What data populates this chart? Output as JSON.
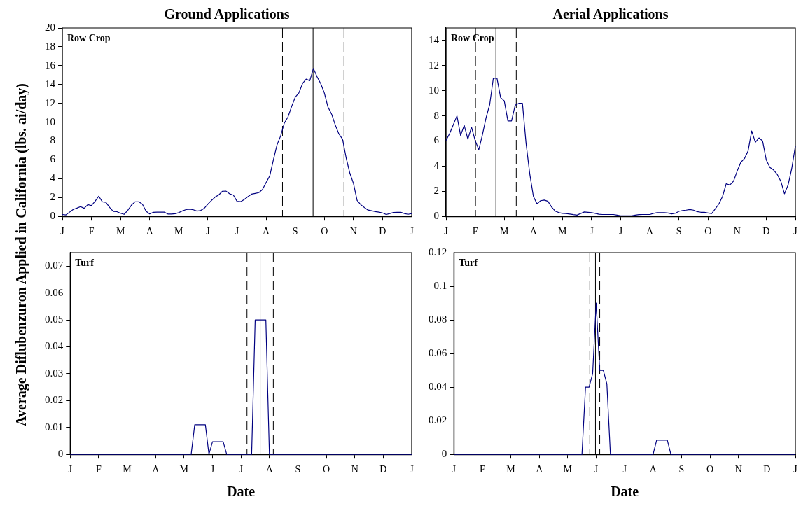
{
  "chart_data": [
    {
      "type": "line",
      "title": "Ground Applications",
      "ylabel": "Average Diflubenzuron Applied in California (lbs. ai/day)",
      "annotations": [
        "Row Crop"
      ],
      "ylim": [
        0,
        20
      ],
      "yticks": [
        0,
        2,
        4,
        6,
        8,
        10,
        12,
        14,
        16,
        18,
        20
      ],
      "categories": [
        "J",
        null,
        null,
        null,
        null,
        null,
        null,
        null,
        "F",
        null,
        null,
        null,
        null,
        null,
        null,
        null,
        "M",
        null,
        null,
        null,
        null,
        null,
        null,
        null,
        "A",
        null,
        null,
        null,
        null,
        null,
        null,
        null,
        "M",
        null,
        null,
        null,
        null,
        null,
        null,
        null,
        "J",
        null,
        null,
        null,
        null,
        null,
        null,
        null,
        "J",
        null,
        null,
        null,
        null,
        null,
        null,
        null,
        "A",
        null,
        null,
        null,
        null,
        null,
        null,
        null,
        "S",
        null,
        null,
        null,
        null,
        null,
        null,
        null,
        "O",
        null,
        null,
        null,
        null,
        null,
        null,
        null,
        "N",
        null,
        null,
        null,
        null,
        null,
        null,
        null,
        "D",
        null,
        null,
        null,
        null,
        null,
        null,
        null,
        "J"
      ],
      "series": [
        {
          "color": "#000080",
          "values": [
            0.2,
            0.16,
            0.45,
            0.74,
            0.88,
            1.04,
            0.86,
            1.25,
            1.15,
            1.6,
            2.15,
            1.55,
            1.48,
            0.95,
            0.53,
            0.5,
            0.33,
            0.22,
            0.65,
            1.2,
            1.55,
            1.55,
            1.3,
            0.55,
            0.26,
            0.44,
            0.45,
            0.45,
            0.45,
            0.25,
            0.24,
            0.28,
            0.4,
            0.58,
            0.72,
            0.77,
            0.7,
            0.56,
            0.62,
            0.86,
            1.3,
            1.7,
            2.05,
            2.28,
            2.67,
            2.68,
            2.39,
            2.26,
            1.6,
            1.56,
            1.8,
            2.1,
            2.36,
            2.44,
            2.52,
            2.86,
            3.6,
            4.3,
            6.0,
            7.6,
            8.55,
            9.9,
            10.55,
            11.65,
            12.65,
            13.1,
            14.1,
            14.57,
            14.4,
            15.7,
            14.82,
            14.1,
            13.1,
            11.6,
            10.85,
            9.7,
            8.75,
            8.2,
            6.2,
            4.6,
            3.5,
            1.7,
            1.25,
            0.95,
            0.67,
            0.6,
            0.51,
            0.45,
            0.37,
            0.2,
            0.3,
            0.41,
            0.43,
            0.44,
            0.3,
            0.22,
            0.3
          ]
        }
      ]
    },
    {
      "type": "line",
      "title": "Aerial Applications",
      "annotations": [
        "Row Crop"
      ],
      "ylim": [
        0,
        15
      ],
      "yticks": [
        0,
        2,
        4,
        6,
        8,
        10,
        12,
        14
      ],
      "categories": [
        "J",
        null,
        null,
        null,
        null,
        null,
        null,
        null,
        "F",
        null,
        null,
        null,
        null,
        null,
        null,
        null,
        "M",
        null,
        null,
        null,
        null,
        null,
        null,
        null,
        "A",
        null,
        null,
        null,
        null,
        null,
        null,
        null,
        "M",
        null,
        null,
        null,
        null,
        null,
        null,
        null,
        "J",
        null,
        null,
        null,
        null,
        null,
        null,
        null,
        "J",
        null,
        null,
        null,
        null,
        null,
        null,
        null,
        "A",
        null,
        null,
        null,
        null,
        null,
        null,
        null,
        "S",
        null,
        null,
        null,
        null,
        null,
        null,
        null,
        "O",
        null,
        null,
        null,
        null,
        null,
        null,
        null,
        "N",
        null,
        null,
        null,
        null,
        null,
        null,
        null,
        "D",
        null,
        null,
        null,
        null,
        null,
        null,
        null,
        "J"
      ],
      "series": [
        {
          "color": "#000080",
          "values": [
            6.05,
            6.6,
            7.3,
            8.0,
            6.45,
            7.25,
            6.15,
            7.1,
            6.05,
            5.3,
            6.5,
            7.85,
            8.9,
            11.0,
            11.0,
            9.45,
            9.2,
            7.6,
            7.6,
            8.85,
            9.0,
            9.0,
            5.8,
            3.4,
            1.6,
            1.0,
            1.25,
            1.3,
            1.2,
            0.75,
            0.42,
            0.3,
            0.24,
            0.22,
            0.19,
            0.14,
            0.1,
            0.23,
            0.35,
            0.33,
            0.3,
            0.24,
            0.17,
            0.15,
            0.15,
            0.15,
            0.15,
            0.1,
            0.05,
            0.05,
            0.05,
            0.05,
            0.1,
            0.14,
            0.15,
            0.15,
            0.15,
            0.24,
            0.3,
            0.3,
            0.3,
            0.27,
            0.2,
            0.25,
            0.4,
            0.47,
            0.5,
            0.55,
            0.5,
            0.38,
            0.33,
            0.32,
            0.27,
            0.22,
            0.6,
            1.0,
            1.6,
            2.6,
            2.5,
            2.8,
            3.6,
            4.3,
            4.6,
            5.2,
            6.8,
            5.9,
            6.25,
            6.0,
            4.5,
            3.9,
            3.7,
            3.35,
            2.8,
            1.8,
            2.5,
            3.8,
            5.6
          ]
        }
      ]
    },
    {
      "type": "line",
      "xlabel": "Date",
      "annotations": [
        "Turf"
      ],
      "ylim": [
        0,
        0.075
      ],
      "yticks": [
        0,
        0.01,
        0.02,
        0.03,
        0.04,
        0.05,
        0.06,
        0.07
      ],
      "categories": [
        "J",
        null,
        null,
        null,
        null,
        null,
        null,
        null,
        "F",
        null,
        null,
        null,
        null,
        null,
        null,
        null,
        "M",
        null,
        null,
        null,
        null,
        null,
        null,
        null,
        "A",
        null,
        null,
        null,
        null,
        null,
        null,
        null,
        "M",
        null,
        null,
        null,
        null,
        null,
        null,
        null,
        "J",
        null,
        null,
        null,
        null,
        null,
        null,
        null,
        "J",
        null,
        null,
        null,
        null,
        null,
        null,
        null,
        "A",
        null,
        null,
        null,
        null,
        null,
        null,
        null,
        "S",
        null,
        null,
        null,
        null,
        null,
        null,
        null,
        "O",
        null,
        null,
        null,
        null,
        null,
        null,
        null,
        "N",
        null,
        null,
        null,
        null,
        null,
        null,
        null,
        "D",
        null,
        null,
        null,
        null,
        null,
        null,
        null,
        "J"
      ],
      "series": [
        {
          "color": "#000080",
          "values": [
            0,
            0,
            0,
            0,
            0,
            0,
            0,
            0,
            0,
            0,
            0,
            0,
            0,
            0,
            0,
            0,
            0,
            0,
            0,
            0,
            0,
            0,
            0,
            0,
            0,
            0,
            0,
            0,
            0,
            0,
            0,
            0,
            0,
            0,
            0,
            0.011,
            0.011,
            0.011,
            0.011,
            0,
            0.0047,
            0.0047,
            0.0047,
            0.0047,
            0,
            0,
            0,
            0,
            0,
            0,
            0,
            0,
            0.05,
            0.05,
            0.05,
            0.05,
            0,
            0,
            0,
            0,
            0,
            0,
            0,
            0,
            0,
            0,
            0,
            0,
            0,
            0,
            0,
            0,
            0,
            0,
            0,
            0,
            0,
            0,
            0,
            0,
            0,
            0,
            0,
            0,
            0,
            0,
            0,
            0,
            0,
            0,
            0,
            0,
            0,
            0,
            0,
            0,
            0
          ]
        }
      ]
    },
    {
      "type": "line",
      "xlabel": "Date",
      "annotations": [
        "Turf"
      ],
      "ylim": [
        0,
        0.12
      ],
      "yticks": [
        0,
        0.02,
        0.04,
        0.06,
        0.08,
        0.1,
        0.12
      ],
      "categories": [
        "J",
        null,
        null,
        null,
        null,
        null,
        null,
        null,
        "F",
        null,
        null,
        null,
        null,
        null,
        null,
        null,
        "M",
        null,
        null,
        null,
        null,
        null,
        null,
        null,
        "A",
        null,
        null,
        null,
        null,
        null,
        null,
        null,
        "M",
        null,
        null,
        null,
        null,
        null,
        null,
        null,
        "J",
        null,
        null,
        null,
        null,
        null,
        null,
        null,
        "J",
        null,
        null,
        null,
        null,
        null,
        null,
        null,
        "A",
        null,
        null,
        null,
        null,
        null,
        null,
        null,
        "S",
        null,
        null,
        null,
        null,
        null,
        null,
        null,
        "O",
        null,
        null,
        null,
        null,
        null,
        null,
        null,
        "N",
        null,
        null,
        null,
        null,
        null,
        null,
        null,
        "D",
        null,
        null,
        null,
        null,
        null,
        null,
        null,
        "J"
      ],
      "series": [
        {
          "color": "#000080",
          "values": [
            0,
            0,
            0,
            0,
            0,
            0,
            0,
            0,
            0,
            0,
            0,
            0,
            0,
            0,
            0,
            0,
            0,
            0,
            0,
            0,
            0,
            0,
            0,
            0,
            0,
            0,
            0,
            0,
            0,
            0,
            0,
            0,
            0,
            0,
            0,
            0,
            0,
            0.04,
            0.04,
            0.048,
            0.09,
            0.05,
            0.05,
            0.042,
            0,
            0,
            0,
            0,
            0,
            0,
            0,
            0,
            0,
            0,
            0,
            0,
            0,
            0.0085,
            0.0085,
            0.0085,
            0.0085,
            0,
            0,
            0,
            0,
            0,
            0,
            0,
            0,
            0,
            0,
            0,
            0,
            0,
            0,
            0,
            0,
            0,
            0,
            0,
            0,
            0,
            0,
            0,
            0,
            0,
            0,
            0,
            0,
            0,
            0,
            0,
            0,
            0,
            0,
            0,
            0
          ]
        }
      ]
    }
  ]
}
